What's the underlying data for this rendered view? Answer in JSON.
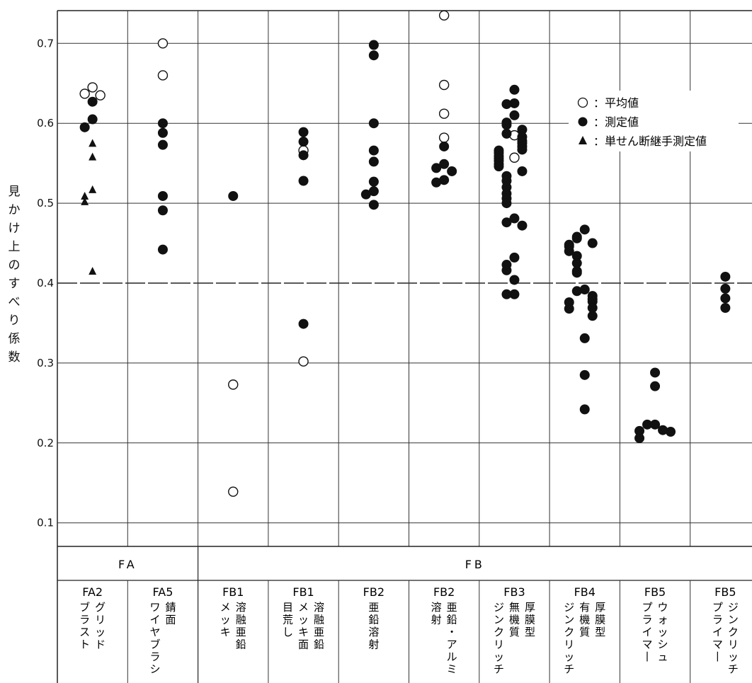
{
  "chart_data": {
    "type": "scatter",
    "ylabel": "見かけ上のすべり係数",
    "ylim": [
      0.07,
      0.745
    ],
    "y_ticks": [
      "0.7",
      "0.6",
      "0.5",
      "0.4",
      "0.3",
      "0.2",
      "0.1"
    ],
    "y_tick_values": [
      0.7,
      0.6,
      0.5,
      0.4,
      0.3,
      0.2,
      0.1
    ],
    "reference_line": 0.4,
    "grid": true,
    "legend_position": "top-right",
    "legend": [
      {
        "symbol": "○",
        "label": "：平均値"
      },
      {
        "symbol": "●",
        "label": "：測定値"
      },
      {
        "symbol": "▲",
        "label": "：単せん断継手測定値"
      }
    ],
    "groups": [
      "FA",
      "FB"
    ],
    "categories": [
      {
        "code": "FA2",
        "desc": [
          "グリッド",
          "ブラスト"
        ]
      },
      {
        "code": "FA5",
        "desc": [
          "錆面",
          "ワイヤブラシ"
        ]
      },
      {
        "code": "FB1",
        "desc": [
          "溶融亜鉛",
          "メッキ"
        ]
      },
      {
        "code": "FB1",
        "desc": [
          "溶融亜鉛",
          "メッキ面",
          "目荒し"
        ]
      },
      {
        "code": "FB2",
        "desc": [
          "亜鉛溶射"
        ]
      },
      {
        "code": "FB2",
        "desc": [
          "亜鉛・アルミ",
          "溶射"
        ]
      },
      {
        "code": "FB3",
        "desc": [
          "厚膜型",
          "無機質",
          "ジンクリッチ"
        ]
      },
      {
        "code": "FB4",
        "desc": [
          "厚膜型",
          "有機質",
          "ジンクリッチ"
        ]
      },
      {
        "code": "FB5",
        "desc": [
          "ウォッシュ",
          "プライマー"
        ]
      },
      {
        "code": "FB5",
        "desc": [
          "ジンクリッチ",
          "プライマー"
        ]
      }
    ],
    "series": [
      {
        "name": "平均値",
        "marker": "open-circle",
        "points": [
          {
            "x": 0,
            "y": [
              0.645,
              0.637,
              0.635
            ]
          },
          {
            "x": 1,
            "y": [
              0.7,
              0.66
            ]
          },
          {
            "x": 2,
            "y": [
              0.273,
              0.139
            ]
          },
          {
            "x": 3,
            "y": [
              0.566,
              0.302
            ]
          },
          {
            "x": 5,
            "y": [
              0.735,
              0.648,
              0.612,
              0.582
            ]
          },
          {
            "x": 6,
            "y": [
              0.585,
              0.557
            ]
          }
        ]
      },
      {
        "name": "測定値",
        "marker": "filled-circle",
        "points": [
          {
            "x": 0,
            "y": [
              0.627,
              0.605,
              0.595
            ]
          },
          {
            "x": 1,
            "y": [
              0.6,
              0.588,
              0.573,
              0.509,
              0.491,
              0.442
            ]
          },
          {
            "x": 2,
            "y": [
              0.509
            ]
          },
          {
            "x": 3,
            "y": [
              0.589,
              0.577,
              0.56,
              0.528,
              0.349
            ]
          },
          {
            "x": 4,
            "y": [
              0.698,
              0.685,
              0.6,
              0.566,
              0.552,
              0.527,
              0.515,
              0.511,
              0.498
            ]
          },
          {
            "x": 5,
            "y": [
              0.571,
              0.549,
              0.544,
              0.54,
              0.529,
              0.526
            ]
          },
          {
            "x": 6,
            "y": [
              0.642,
              0.625,
              0.624,
              0.61,
              0.601,
              0.598,
              0.592,
              0.587,
              0.583,
              0.578,
              0.575,
              0.571,
              0.567,
              0.566,
              0.563,
              0.559,
              0.556,
              0.553,
              0.549,
              0.546,
              0.54,
              0.534,
              0.528,
              0.52,
              0.512,
              0.506,
              0.5,
              0.481,
              0.476,
              0.472,
              0.432,
              0.423,
              0.416,
              0.404,
              0.386,
              0.386
            ]
          },
          {
            "x": 7,
            "y": [
              0.467,
              0.458,
              0.456,
              0.45,
              0.448,
              0.446,
              0.44,
              0.434,
              0.425,
              0.415,
              0.413,
              0.392,
              0.39,
              0.384,
              0.38,
              0.377,
              0.376,
              0.369,
              0.368,
              0.359,
              0.331,
              0.285,
              0.242
            ]
          },
          {
            "x": 8,
            "y": [
              0.288,
              0.271,
              0.223,
              0.223,
              0.216,
              0.215,
              0.214,
              0.206
            ]
          },
          {
            "x": 9,
            "y": [
              0.408,
              0.393,
              0.381,
              0.369
            ]
          }
        ]
      },
      {
        "name": "単せん断継手測定値",
        "marker": "filled-triangle",
        "points": [
          {
            "x": 0,
            "y": [
              0.575,
              0.558,
              0.517,
              0.509,
              0.502,
              0.415
            ]
          }
        ]
      }
    ]
  }
}
